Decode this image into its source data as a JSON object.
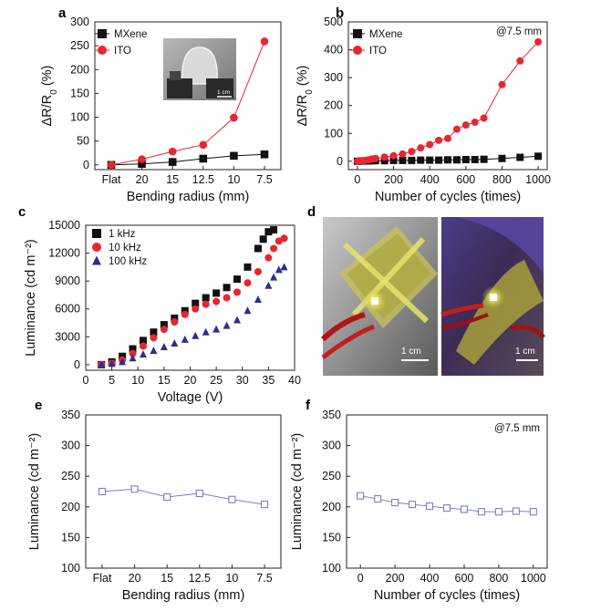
{
  "panels": {
    "a": "a",
    "b": "b",
    "c": "c",
    "d": "d",
    "e": "e",
    "f": "f"
  },
  "photo_scale_labels": {
    "inset": "1 cm",
    "d_left": "1 cm",
    "d_right": "1 cm"
  },
  "colors": {
    "mxene": "#111111",
    "ito": "#e8262d",
    "series_1khz": "#111111",
    "series_10khz": "#e8262d",
    "series_100khz": "#2b2f8f",
    "lum_line": "#7b7fc4"
  },
  "chart_data": [
    {
      "id": "a",
      "type": "line",
      "categories": [
        "Flat",
        "20",
        "15",
        "12.5",
        "10",
        "7.5"
      ],
      "xlabel": "Bending radius (mm)",
      "ylabel": "ΔR/R0 (%)",
      "ylim": [
        -10,
        300
      ],
      "yticks": [
        0,
        50,
        100,
        150,
        200,
        250,
        300
      ],
      "legend_position": "top-left",
      "series": [
        {
          "name": "MXene",
          "marker": "square",
          "values": [
            0,
            2,
            6,
            13,
            19,
            22
          ]
        },
        {
          "name": "ITO",
          "marker": "circle",
          "values": [
            0,
            12,
            28,
            42,
            99,
            259
          ]
        }
      ]
    },
    {
      "id": "b",
      "type": "line",
      "xlabel": "Number of cycles (times)",
      "ylabel": "ΔR/R0 (%)",
      "xlim": [
        -50,
        1050
      ],
      "ylim": [
        -30,
        500
      ],
      "xticks": [
        0,
        200,
        400,
        600,
        800,
        1000
      ],
      "yticks": [
        0,
        100,
        200,
        300,
        400,
        500
      ],
      "annotation": "@7.5 mm",
      "legend_position": "top-left",
      "series": [
        {
          "name": "MXene",
          "marker": "square",
          "x": [
            0,
            20,
            40,
            60,
            80,
            100,
            150,
            200,
            250,
            300,
            350,
            400,
            450,
            500,
            550,
            600,
            650,
            700,
            800,
            900,
            1000
          ],
          "y": [
            0,
            1,
            1,
            1,
            2,
            2,
            2,
            3,
            3,
            3,
            4,
            4,
            4,
            5,
            5,
            6,
            6,
            7,
            10,
            14,
            18
          ]
        },
        {
          "name": "ITO",
          "marker": "circle",
          "x": [
            0,
            20,
            40,
            60,
            80,
            100,
            150,
            200,
            250,
            300,
            350,
            400,
            450,
            500,
            550,
            600,
            650,
            700,
            800,
            900,
            1000
          ],
          "y": [
            0,
            2,
            3,
            5,
            8,
            10,
            15,
            20,
            26,
            35,
            48,
            60,
            75,
            82,
            115,
            130,
            140,
            155,
            275,
            360,
            428
          ]
        }
      ]
    },
    {
      "id": "c",
      "type": "scatter",
      "xlabel": "Voltage (V)",
      "ylabel": "Luminance (cd m⁻²)",
      "xlim": [
        0,
        40
      ],
      "ylim": [
        -600,
        15000
      ],
      "xticks": [
        0,
        5,
        10,
        15,
        20,
        25,
        30,
        35,
        40
      ],
      "yticks": [
        0,
        3000,
        6000,
        9000,
        12000,
        15000
      ],
      "legend_position": "top-left",
      "series": [
        {
          "name": "1 kHz",
          "marker": "square",
          "x": [
            3,
            5,
            7,
            9,
            11,
            13,
            15,
            17,
            19,
            21,
            23,
            25,
            27,
            29,
            31,
            33,
            34,
            35,
            36
          ],
          "y": [
            0,
            300,
            900,
            1700,
            2600,
            3500,
            4300,
            5000,
            5800,
            6600,
            7200,
            7700,
            8300,
            9200,
            10500,
            12500,
            13500,
            14300,
            14500
          ]
        },
        {
          "name": "10 kHz",
          "marker": "circle",
          "x": [
            3,
            5,
            7,
            9,
            11,
            13,
            15,
            17,
            19,
            21,
            23,
            25,
            27,
            29,
            31,
            33,
            35,
            36,
            37,
            38
          ],
          "y": [
            0,
            150,
            500,
            1200,
            2000,
            2900,
            3800,
            4600,
            5400,
            6000,
            6500,
            6800,
            7200,
            7800,
            8800,
            10000,
            11500,
            12500,
            13300,
            13600
          ]
        },
        {
          "name": "100 kHz",
          "marker": "triangle",
          "x": [
            3,
            5,
            7,
            9,
            11,
            13,
            15,
            17,
            19,
            21,
            23,
            25,
            27,
            29,
            31,
            33,
            35,
            36,
            37,
            38
          ],
          "y": [
            0,
            100,
            300,
            700,
            1100,
            1500,
            1900,
            2300,
            2700,
            3100,
            3500,
            3800,
            4200,
            4800,
            5800,
            7000,
            8500,
            9400,
            10200,
            10500
          ]
        }
      ]
    },
    {
      "id": "e",
      "type": "line",
      "categories": [
        "Flat",
        "20",
        "15",
        "12.5",
        "10",
        "7.5"
      ],
      "xlabel": "Bending radius (mm)",
      "ylabel": "Luminance (cd m⁻²)",
      "ylim": [
        100,
        350
      ],
      "yticks": [
        100,
        150,
        200,
        250,
        300,
        350
      ],
      "series": [
        {
          "marker": "open-square",
          "values": [
            225,
            229,
            216,
            222,
            212,
            204
          ]
        }
      ]
    },
    {
      "id": "f",
      "type": "line",
      "xlabel": "Number of cycles (times)",
      "ylabel": "Luminance (cd m⁻²)",
      "xlim": [
        -80,
        1080
      ],
      "ylim": [
        100,
        350
      ],
      "xticks": [
        0,
        200,
        400,
        600,
        800,
        1000
      ],
      "yticks": [
        100,
        150,
        200,
        250,
        300,
        350
      ],
      "annotation": "@7.5 mm",
      "series": [
        {
          "marker": "open-square",
          "x": [
            0,
            100,
            200,
            300,
            400,
            500,
            600,
            700,
            800,
            900,
            1000
          ],
          "y": [
            218,
            213,
            207,
            204,
            201,
            198,
            196,
            192,
            192,
            193,
            192
          ]
        }
      ]
    }
  ]
}
